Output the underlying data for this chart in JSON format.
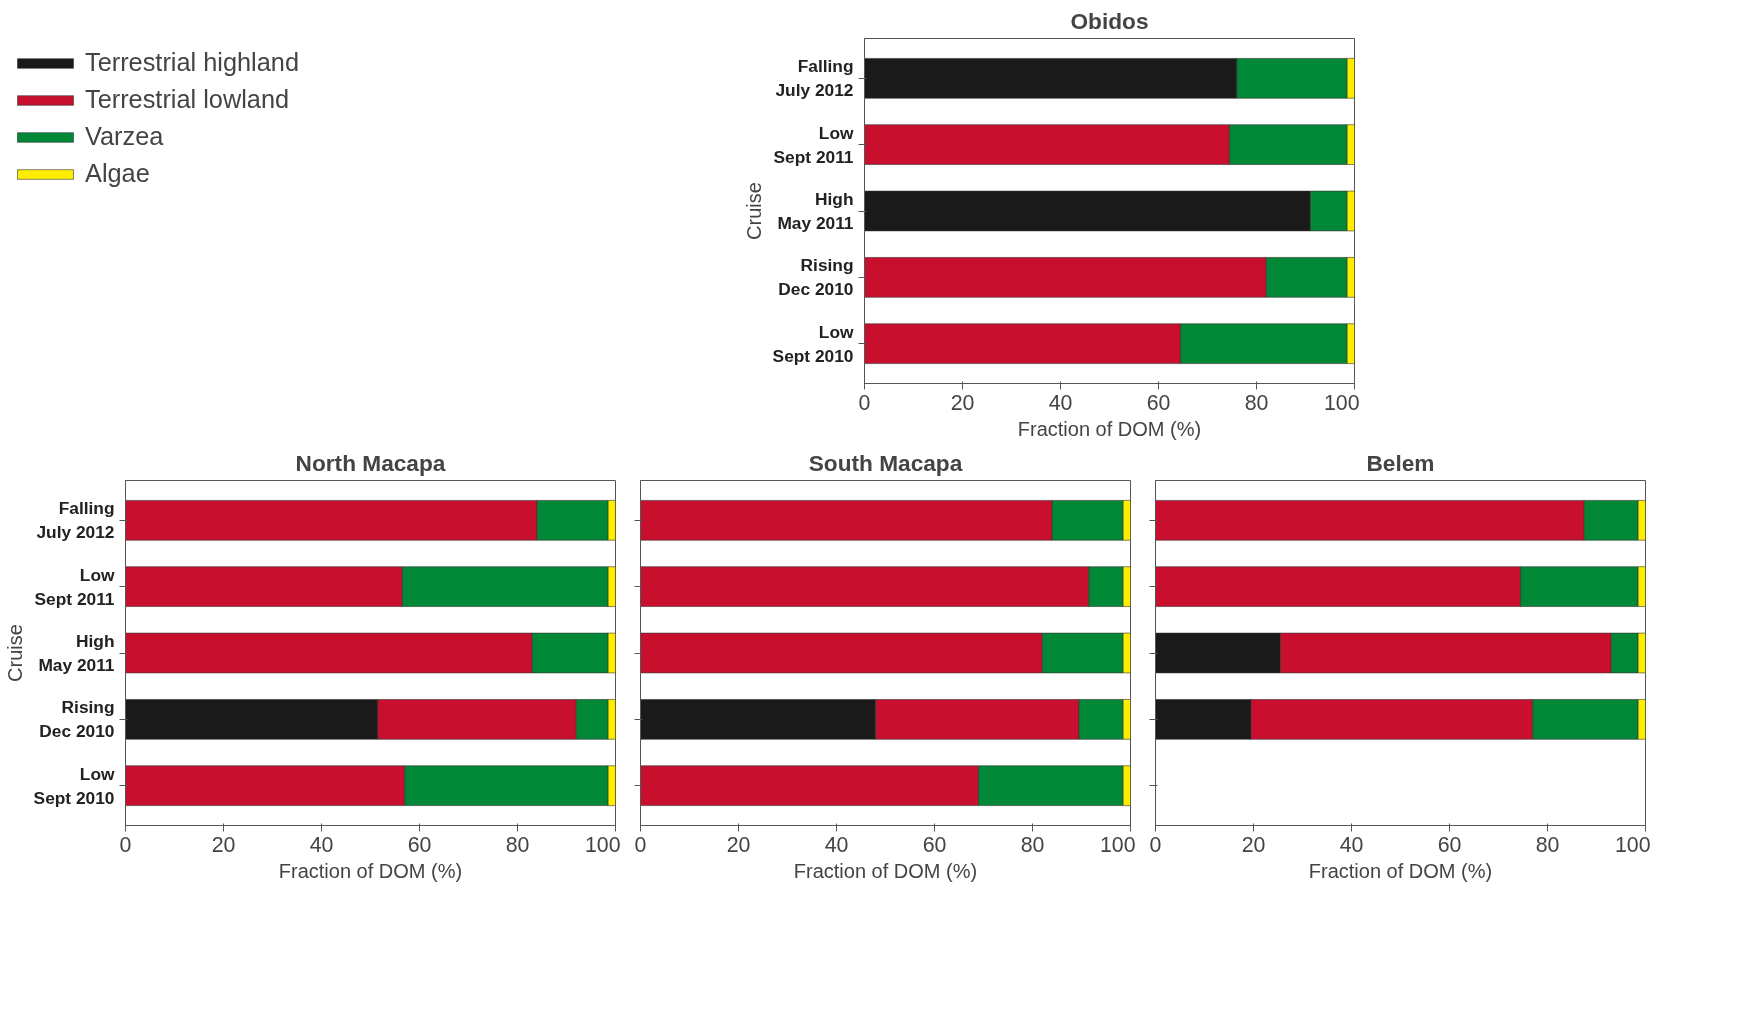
{
  "chart_data": [
    {
      "type": "bar",
      "title": "Obidos",
      "orientation": "horizontal",
      "stacked": true,
      "xlabel": "Fraction of DOM (%)",
      "ylabel": "Cruise",
      "categories": [
        "Falling\nJuly 2012",
        "Low\nSept 2011",
        "High\nMay 2011",
        "Rising\nDec 2010",
        "Low\nSept 2010"
      ],
      "xlim": [
        0,
        100
      ],
      "xticks": [
        0,
        20,
        40,
        60,
        80,
        100
      ],
      "grid": false,
      "legend": "left",
      "series": [
        {
          "name": "Terrestrial highland",
          "color": "#1a1a1a",
          "values": [
            76,
            null,
            91,
            null,
            null
          ]
        },
        {
          "name": "Terrestrial lowland",
          "color": "#c8102e",
          "values": [
            null,
            74.5,
            null,
            82,
            64.5
          ]
        },
        {
          "name": "Varzea",
          "color": "#008837",
          "values": [
            22.5,
            24,
            7.5,
            16.5,
            34
          ]
        },
        {
          "name": "Algae",
          "color": "#ffed00",
          "values": [
            1.5,
            1.5,
            1.5,
            1.5,
            1.5
          ]
        }
      ]
    },
    {
      "type": "bar",
      "title": "North Macapa",
      "orientation": "horizontal",
      "stacked": true,
      "xlabel": "Fraction of DOM (%)",
      "ylabel": "Cruise",
      "categories": [
        "Falling\nJuly 2012",
        "Low\nSept 2011",
        "High\nMay 2011",
        "Rising\nDec 2010",
        "Low\nSept 2010"
      ],
      "xlim": [
        0,
        100
      ],
      "xticks": [
        0,
        20,
        40,
        60,
        80,
        100
      ],
      "grid": false,
      "series": [
        {
          "color": "#1a1a1a",
          "values": [
            null,
            null,
            null,
            51.5,
            null
          ]
        },
        {
          "color": "#c8102e",
          "values": [
            84,
            56.5,
            83,
            40.5,
            57
          ]
        },
        {
          "color": "#008837",
          "values": [
            14.5,
            42,
            15.5,
            6.5,
            41.5
          ]
        },
        {
          "color": "#ffed00",
          "values": [
            1.5,
            1.5,
            1.5,
            1.5,
            1.5
          ]
        }
      ]
    },
    {
      "type": "bar",
      "title": "South Macapa",
      "orientation": "horizontal",
      "stacked": true,
      "xlabel": "Fraction of DOM (%)",
      "tick_labels": "x",
      "categories": [
        null,
        null,
        null,
        null,
        null
      ],
      "xlim": [
        0,
        100
      ],
      "xticks": [
        0,
        20,
        40,
        60,
        80,
        100
      ],
      "grid": false,
      "series": [
        {
          "color": "#1a1a1a",
          "values": [
            null,
            null,
            null,
            48,
            null
          ]
        },
        {
          "color": "#c8102e",
          "values": [
            84,
            91.5,
            82,
            41.5,
            69
          ]
        },
        {
          "color": "#008837",
          "values": [
            14.5,
            7,
            16.5,
            9,
            29.5
          ]
        },
        {
          "color": "#ffed00",
          "values": [
            1.5,
            1.5,
            1.5,
            1.5,
            1.5
          ]
        }
      ]
    },
    {
      "type": "bar",
      "title": "Belem",
      "orientation": "horizontal",
      "stacked": true,
      "xlabel": "Fraction of DOM (%)",
      "tick_labels": "x",
      "categories": [
        null,
        null,
        null,
        null,
        null
      ],
      "xlim": [
        0,
        100
      ],
      "xticks": [
        0,
        20,
        40,
        60,
        80,
        100
      ],
      "grid": false,
      "series": [
        {
          "color": "#1a1a1a",
          "values": [
            null,
            null,
            25.5,
            19.5,
            null
          ]
        },
        {
          "color": "#c8102e",
          "values": [
            87.5,
            74.5,
            67.5,
            57.5,
            null
          ]
        },
        {
          "color": "#008837",
          "values": [
            11,
            24,
            5.5,
            21.5,
            null
          ]
        },
        {
          "color": "#ffed00",
          "values": [
            1.5,
            1.5,
            1.5,
            1.5,
            null
          ]
        }
      ]
    }
  ]
}
